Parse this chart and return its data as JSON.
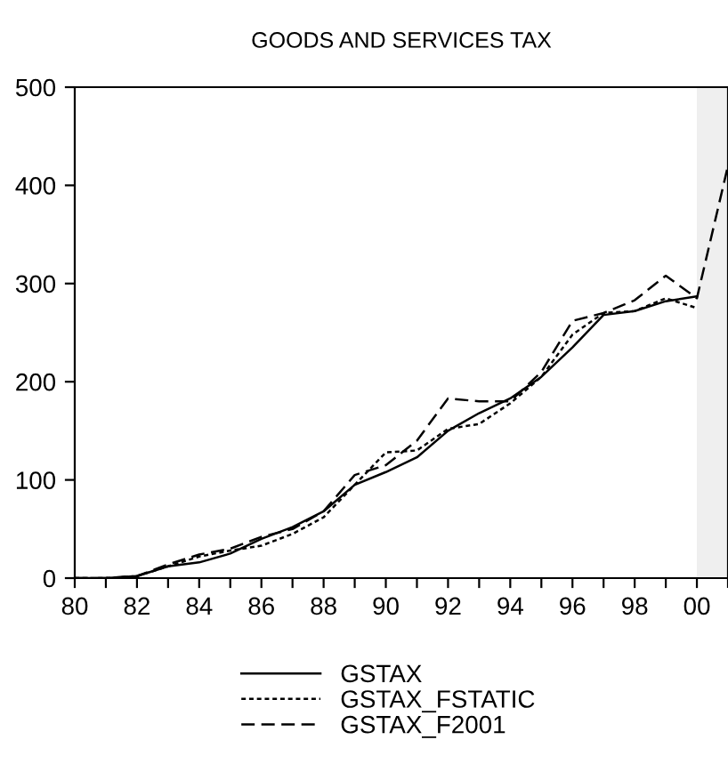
{
  "chart_data": {
    "type": "line",
    "title": "GOODS AND SERVICES TAX",
    "x": [
      1980,
      1981,
      1982,
      1983,
      1984,
      1985,
      1986,
      1987,
      1988,
      1989,
      1990,
      1991,
      1992,
      1993,
      1994,
      1995,
      1996,
      1997,
      1998,
      1999,
      2000,
      2001
    ],
    "series": [
      {
        "name": "GSTAX",
        "color": "#000000",
        "line_style": "solid",
        "values": [
          0,
          0,
          2,
          12,
          16,
          25,
          40,
          52,
          68,
          95,
          108,
          123,
          150,
          168,
          183,
          205,
          235,
          268,
          272,
          282,
          287,
          null
        ]
      },
      {
        "name": "GSTAX_FSTATIC",
        "color": "#000000",
        "line_style": "dotted",
        "values": [
          0,
          0,
          2,
          12,
          22,
          28,
          33,
          45,
          62,
          95,
          128,
          130,
          152,
          157,
          178,
          205,
          248,
          270,
          272,
          285,
          275,
          null
        ]
      },
      {
        "name": "GSTAX_F2001",
        "color": "#000000",
        "line_style": "dashed",
        "values": [
          0,
          0,
          2,
          14,
          24,
          30,
          42,
          50,
          68,
          105,
          115,
          140,
          183,
          180,
          180,
          210,
          262,
          270,
          283,
          308,
          285,
          420
        ]
      }
    ],
    "xlim": [
      1980,
      2001
    ],
    "xticks": [
      {
        "value": 1980,
        "label": "80"
      },
      {
        "value": 1981,
        "label": null
      },
      {
        "value": 1982,
        "label": "82"
      },
      {
        "value": 1983,
        "label": null
      },
      {
        "value": 1984,
        "label": "84"
      },
      {
        "value": 1985,
        "label": null
      },
      {
        "value": 1986,
        "label": "86"
      },
      {
        "value": 1987,
        "label": null
      },
      {
        "value": 1988,
        "label": "88"
      },
      {
        "value": 1989,
        "label": null
      },
      {
        "value": 1990,
        "label": "90"
      },
      {
        "value": 1991,
        "label": null
      },
      {
        "value": 1992,
        "label": "92"
      },
      {
        "value": 1993,
        "label": null
      },
      {
        "value": 1994,
        "label": "94"
      },
      {
        "value": 1995,
        "label": null
      },
      {
        "value": 1996,
        "label": "96"
      },
      {
        "value": 1997,
        "label": null
      },
      {
        "value": 1998,
        "label": "98"
      },
      {
        "value": 1999,
        "label": null
      },
      {
        "value": 2000,
        "label": "00"
      },
      {
        "value": 2001,
        "label": null
      }
    ],
    "ylim": [
      0,
      500
    ],
    "yticks": [
      0,
      100,
      200,
      300,
      400,
      500
    ],
    "bands": [
      {
        "axis": "x",
        "from": 2000,
        "to": 2001,
        "color": "#efefef"
      }
    ],
    "grid": false,
    "legend": "bottom"
  }
}
